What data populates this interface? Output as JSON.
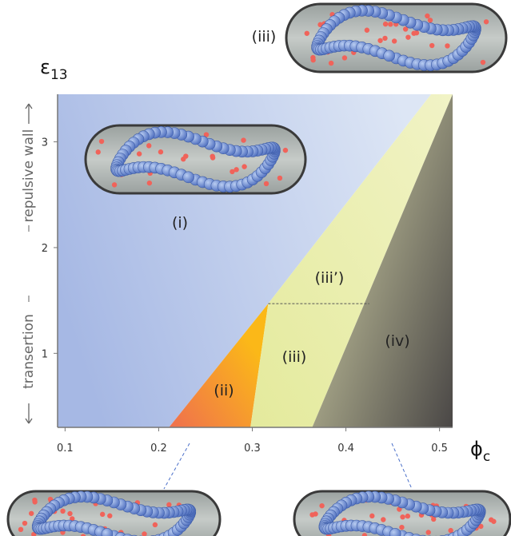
{
  "chart_data": {
    "type": "phase_diagram",
    "x_label": {
      "symbol": "ϕ",
      "subscript": "c"
    },
    "y_label": {
      "symbol": "ε",
      "subscript": "13"
    },
    "side_label_low": "transertion",
    "side_label_high": "repulsive wall",
    "xlim": [
      0.092,
      0.514
    ],
    "ylim": [
      0.3,
      3.45
    ],
    "xticks": [
      0.1,
      0.2,
      0.3,
      0.4,
      0.5
    ],
    "yticks": [
      1,
      2,
      3
    ],
    "regions": [
      {
        "name": "(i)",
        "colors": [
          "#a6b8e4",
          "#dde6f5"
        ],
        "x": [
          0.092,
          0.211,
          0.317,
          0.491,
          0.092
        ],
        "y": [
          0.3,
          0.3,
          1.47,
          3.45,
          3.45
        ]
      },
      {
        "name": "(ii)",
        "colors": [
          "#ef6f4e",
          "#fbb818"
        ],
        "x": [
          0.211,
          0.298,
          0.317
        ],
        "y": [
          0.3,
          0.3,
          1.47
        ]
      },
      {
        "name": "(iii)",
        "colors": [
          "#e4ea9c",
          "#f1f3c6"
        ],
        "x": [
          0.298,
          0.364,
          0.514,
          0.491,
          0.317
        ],
        "y": [
          0.3,
          0.3,
          3.45,
          3.45,
          1.47
        ]
      },
      {
        "name": "(iv)",
        "colors": [
          "#4a4746",
          "#d3d3a8"
        ],
        "x": [
          0.364,
          0.514,
          0.514
        ],
        "y": [
          0.3,
          0.3,
          3.45
        ]
      }
    ],
    "divider": {
      "x": [
        0.317,
        0.425
      ],
      "y": [
        1.47,
        1.47
      ]
    },
    "annotation": "(iii’)",
    "inset_label": "(iii)"
  }
}
